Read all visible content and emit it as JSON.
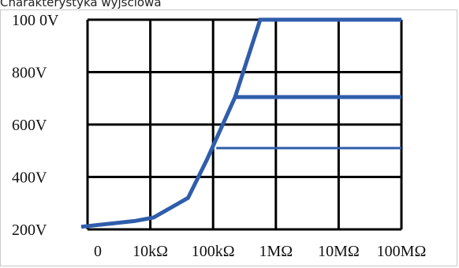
{
  "caption": "Charakterystyka wyjściowa",
  "chart_data": {
    "type": "line",
    "title": "",
    "xlabel": "",
    "ylabel": "",
    "x_categories": [
      "0",
      "10kΩ",
      "100kΩ",
      "1MΩ",
      "10MΩ",
      "100MΩ"
    ],
    "y_tick_labels": [
      "200V",
      "400V",
      "600V",
      "800V",
      "100 0V"
    ],
    "y_tick_values": [
      200,
      400,
      600,
      800,
      1000
    ],
    "ylim": [
      200,
      1000
    ],
    "grid": true,
    "series": [
      {
        "values": [
          [
            -0.1,
            210
          ],
          [
            0.75,
            232
          ],
          [
            1.05,
            245
          ],
          [
            1.6,
            320
          ],
          [
            1.9,
            465
          ],
          [
            2.35,
            705
          ],
          [
            2.75,
            1000
          ],
          [
            5.0,
            1000
          ]
        ],
        "stroke": "#2f5dab",
        "weight": "thick"
      },
      {
        "values": [
          [
            2.35,
            705
          ],
          [
            5.0,
            705
          ]
        ],
        "stroke": "#2f5dab",
        "weight": "thick"
      },
      {
        "values": [
          [
            2.05,
            510
          ],
          [
            5.0,
            510
          ]
        ],
        "stroke": "#2f5dab",
        "weight": "thin"
      }
    ]
  }
}
